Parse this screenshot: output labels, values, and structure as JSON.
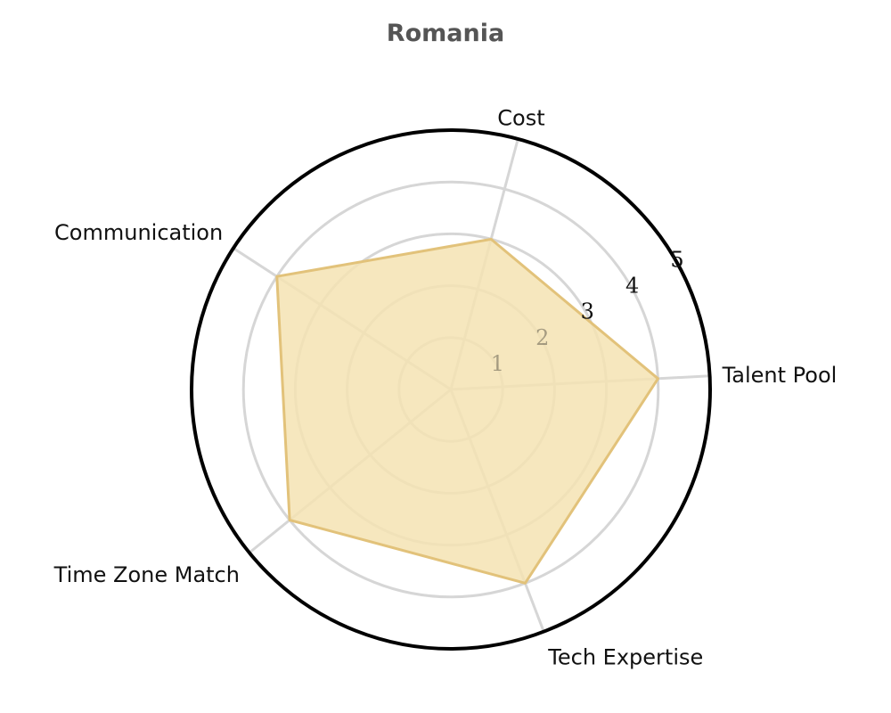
{
  "chart_data": {
    "type": "radar",
    "title": "Romania",
    "categories": [
      "Talent Pool",
      "Cost",
      "Communication",
      "Time Zone Match",
      "Tech Expertise"
    ],
    "series": [
      {
        "values": [
          4,
          3,
          4,
          4,
          4
        ]
      }
    ],
    "radial_ticks": [
      "1",
      "2",
      "3",
      "4",
      "5"
    ],
    "radial_range": [
      0,
      5
    ],
    "fill_color": "#f5e3b3",
    "line_color": "#e2c27a",
    "grid_color": "#d6d6d6",
    "outer_ring_color": "#000000"
  }
}
